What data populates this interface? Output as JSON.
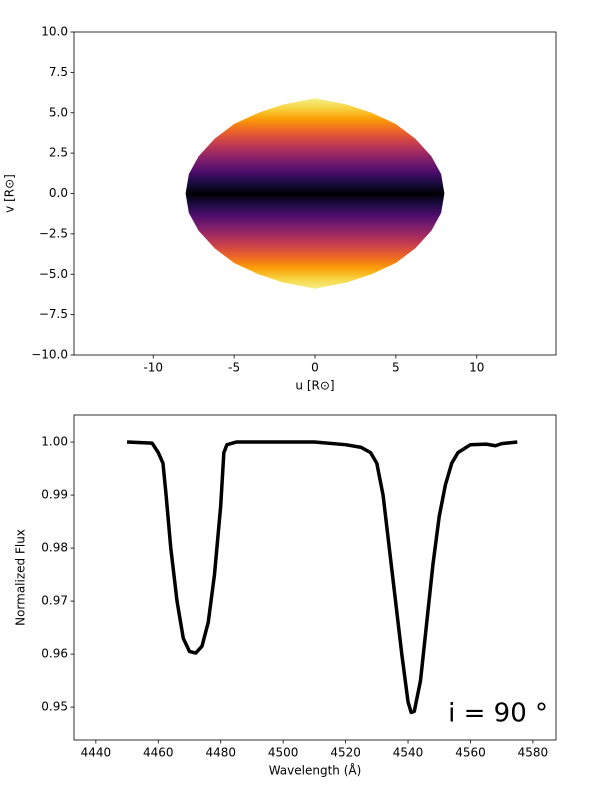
{
  "chart_data": [
    {
      "type": "surface",
      "xlabel": "u [R⊙]",
      "ylabel": "v [R⊙]",
      "xlim": [
        -14.9,
        14.9
      ],
      "ylim": [
        -10,
        10
      ],
      "xticks": [
        -10,
        -5,
        0,
        5,
        10
      ],
      "yticks": [
        {
          "value": -10,
          "label": "−10.0"
        },
        {
          "value": -7.5,
          "label": "−7.5"
        },
        {
          "value": -5,
          "label": "−5.0"
        },
        {
          "value": -2.5,
          "label": "−2.5"
        },
        {
          "value": 0,
          "label": "0.0"
        },
        {
          "value": 2.5,
          "label": "2.5"
        },
        {
          "value": 5,
          "label": "5.0"
        },
        {
          "value": 7.5,
          "label": "7.5"
        },
        {
          "value": 10,
          "label": "10.0"
        }
      ],
      "outline": {
        "u": [
          -8,
          -7.8,
          -7.2,
          -6.2,
          -5,
          -3.5,
          -2,
          0,
          2,
          3.5,
          5,
          6.2,
          7.2,
          7.8,
          8
        ],
        "v": [
          0,
          1.2,
          2.3,
          3.4,
          4.3,
          5.0,
          5.5,
          5.9,
          5.5,
          5.0,
          4.3,
          3.4,
          2.3,
          1.2,
          0
        ]
      },
      "colormap": [
        "#000004",
        "#1b0c41",
        "#4a0c6b",
        "#781c6d",
        "#a52c60",
        "#cf4446",
        "#ed6925",
        "#fb9b06",
        "#f7d13d",
        "#f4f088"
      ]
    },
    {
      "type": "line",
      "xlabel": "Wavelength (Å)",
      "ylabel": "Normalized Flux",
      "annotation": "i = 90 °",
      "xlim": [
        4433,
        4587.4
      ],
      "ylim": [
        0.9438,
        1.0051
      ],
      "xticks": [
        4440,
        4460,
        4480,
        4500,
        4520,
        4540,
        4560,
        4580
      ],
      "yticks": [
        0.95,
        0.96,
        0.97,
        0.98,
        0.99,
        {
          "value": 1.0,
          "label": "1.00"
        }
      ],
      "color": "#000000",
      "x": [
        4450,
        4458,
        4460,
        4461.5,
        4462.5,
        4464,
        4466,
        4468,
        4470,
        4472,
        4474,
        4476,
        4478,
        4480,
        4481,
        4482,
        4485,
        4510,
        4520,
        4525,
        4528,
        4530,
        4532,
        4534,
        4536,
        4538,
        4540,
        4541,
        4542,
        4544,
        4546,
        4548,
        4550,
        4552,
        4554,
        4556,
        4560,
        4565,
        4568,
        4570,
        4575
      ],
      "values": [
        1.0,
        0.9998,
        0.998,
        0.996,
        0.99,
        0.98,
        0.97,
        0.963,
        0.9605,
        0.9602,
        0.9615,
        0.966,
        0.975,
        0.988,
        0.998,
        0.9995,
        1.0,
        1.0,
        0.9995,
        0.999,
        0.998,
        0.996,
        0.99,
        0.98,
        0.97,
        0.96,
        0.951,
        0.949,
        0.9492,
        0.955,
        0.966,
        0.977,
        0.986,
        0.992,
        0.996,
        0.998,
        0.9995,
        0.9996,
        0.9993,
        0.9997,
        1.0
      ]
    }
  ]
}
